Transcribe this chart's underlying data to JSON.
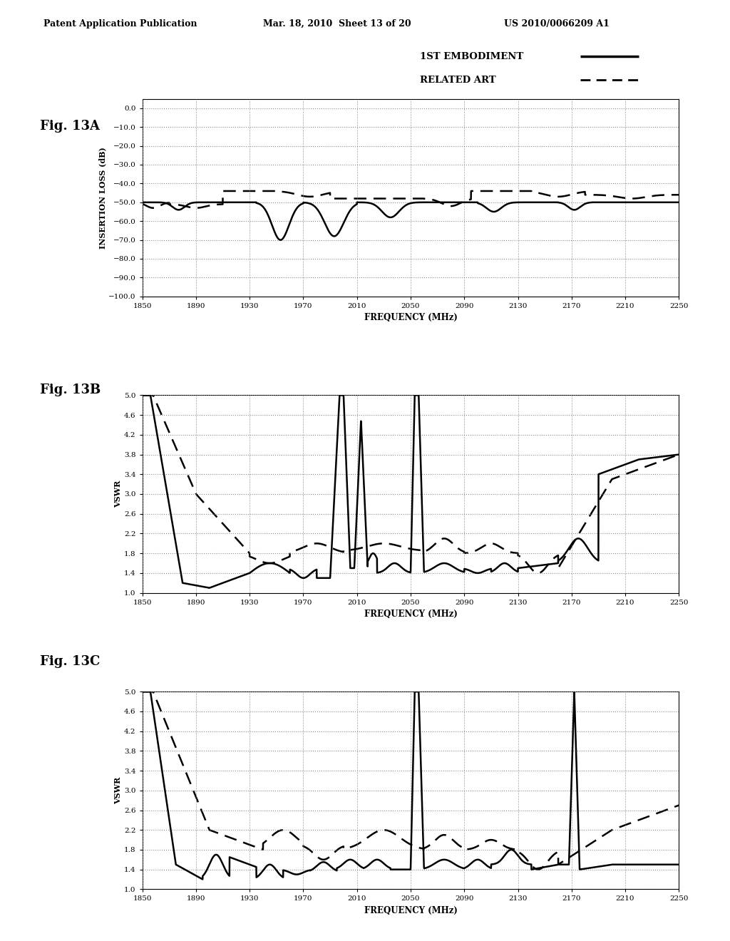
{
  "header_left": "Patent Application Publication",
  "header_mid": "Mar. 18, 2010  Sheet 13 of 20",
  "header_right": "US 2010/0066209 A1",
  "legend_1st": "1ST EMBODIMENT",
  "legend_related": "RELATED ART",
  "fig_labels": [
    "Fig. 13A",
    "Fig. 13B",
    "Fig. 13C"
  ],
  "fig13a": {
    "ylabel": "INSERTION LOSS (dB)",
    "xlabel": "FREQUENCY (MHz)",
    "yticks": [
      0.0,
      -10.0,
      -20.0,
      -30.0,
      -40.0,
      -50.0,
      -60.0,
      -70.0,
      -80.0,
      -90.0,
      -100.0
    ],
    "ytick_labels": [
      "0.0",
      "−10.0",
      "−20.0",
      "−30.0",
      "−40.0",
      "−50.0",
      "−60.0",
      "−70.0",
      "−80.0",
      "−90.0",
      "−100.0"
    ],
    "xticks": [
      1850,
      1890,
      1930,
      1970,
      2010,
      2050,
      2090,
      2130,
      2170,
      2210,
      2250
    ],
    "ylim": [
      -100.0,
      5.0
    ],
    "xlim": [
      1850,
      2250
    ]
  },
  "fig13b": {
    "ylabel": "VSWR",
    "xlabel": "FREQUENCY (MHz)",
    "yticks": [
      1.0,
      1.4,
      1.8,
      2.2,
      2.6,
      3.0,
      3.4,
      3.8,
      4.2,
      4.6,
      5.0
    ],
    "xticks": [
      1850,
      1890,
      1930,
      1970,
      2010,
      2050,
      2090,
      2130,
      2170,
      2210,
      2250
    ],
    "ylim": [
      1.0,
      5.0
    ],
    "xlim": [
      1850,
      2250
    ]
  },
  "fig13c": {
    "ylabel": "VSWR",
    "xlabel": "FREQUENCY (MHz)",
    "yticks": [
      1.0,
      1.4,
      1.8,
      2.2,
      2.6,
      3.0,
      3.4,
      3.8,
      4.2,
      4.6,
      5.0
    ],
    "xticks": [
      1850,
      1890,
      1930,
      1970,
      2010,
      2050,
      2090,
      2130,
      2170,
      2210,
      2250
    ],
    "ylim": [
      1.0,
      5.0
    ],
    "xlim": [
      1850,
      2250
    ]
  },
  "background_color": "#ffffff",
  "line_color": "#000000"
}
